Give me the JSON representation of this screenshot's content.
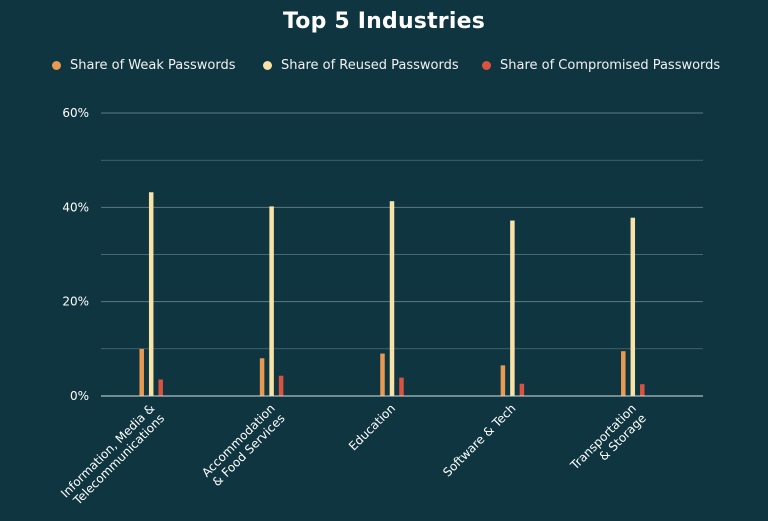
{
  "chart_data": {
    "type": "bar",
    "title": "Top 5 Industries",
    "xlabel": "",
    "ylabel": "",
    "ylim": [
      0,
      60
    ],
    "ytick_values": [
      0,
      20,
      40,
      60
    ],
    "ytick_labels": [
      "0%",
      "20%",
      "40%",
      "60%"
    ],
    "grid": true,
    "legend_position": "top-center",
    "categories": [
      {
        "lines": [
          "Information, Media &",
          "Telecommunications"
        ]
      },
      {
        "lines": [
          "Accommodation",
          "& Food Services"
        ]
      },
      {
        "lines": [
          "Education"
        ]
      },
      {
        "lines": [
          "Software & Tech"
        ]
      },
      {
        "lines": [
          "Transportation",
          "& Storage"
        ]
      }
    ],
    "series": [
      {
        "name": "Share of Weak Passwords",
        "color": "#e89a52",
        "values": [
          10,
          8,
          9,
          6.5,
          9.5
        ]
      },
      {
        "name": "Share of Reused Passwords",
        "color": "#f7e3a8",
        "values": [
          43.2,
          40.2,
          41.3,
          37.2,
          37.8
        ]
      },
      {
        "name": "Share of Compromised Passwords",
        "color": "#d9533f",
        "values": [
          3.5,
          4.3,
          3.9,
          2.6,
          2.5
        ]
      }
    ]
  }
}
